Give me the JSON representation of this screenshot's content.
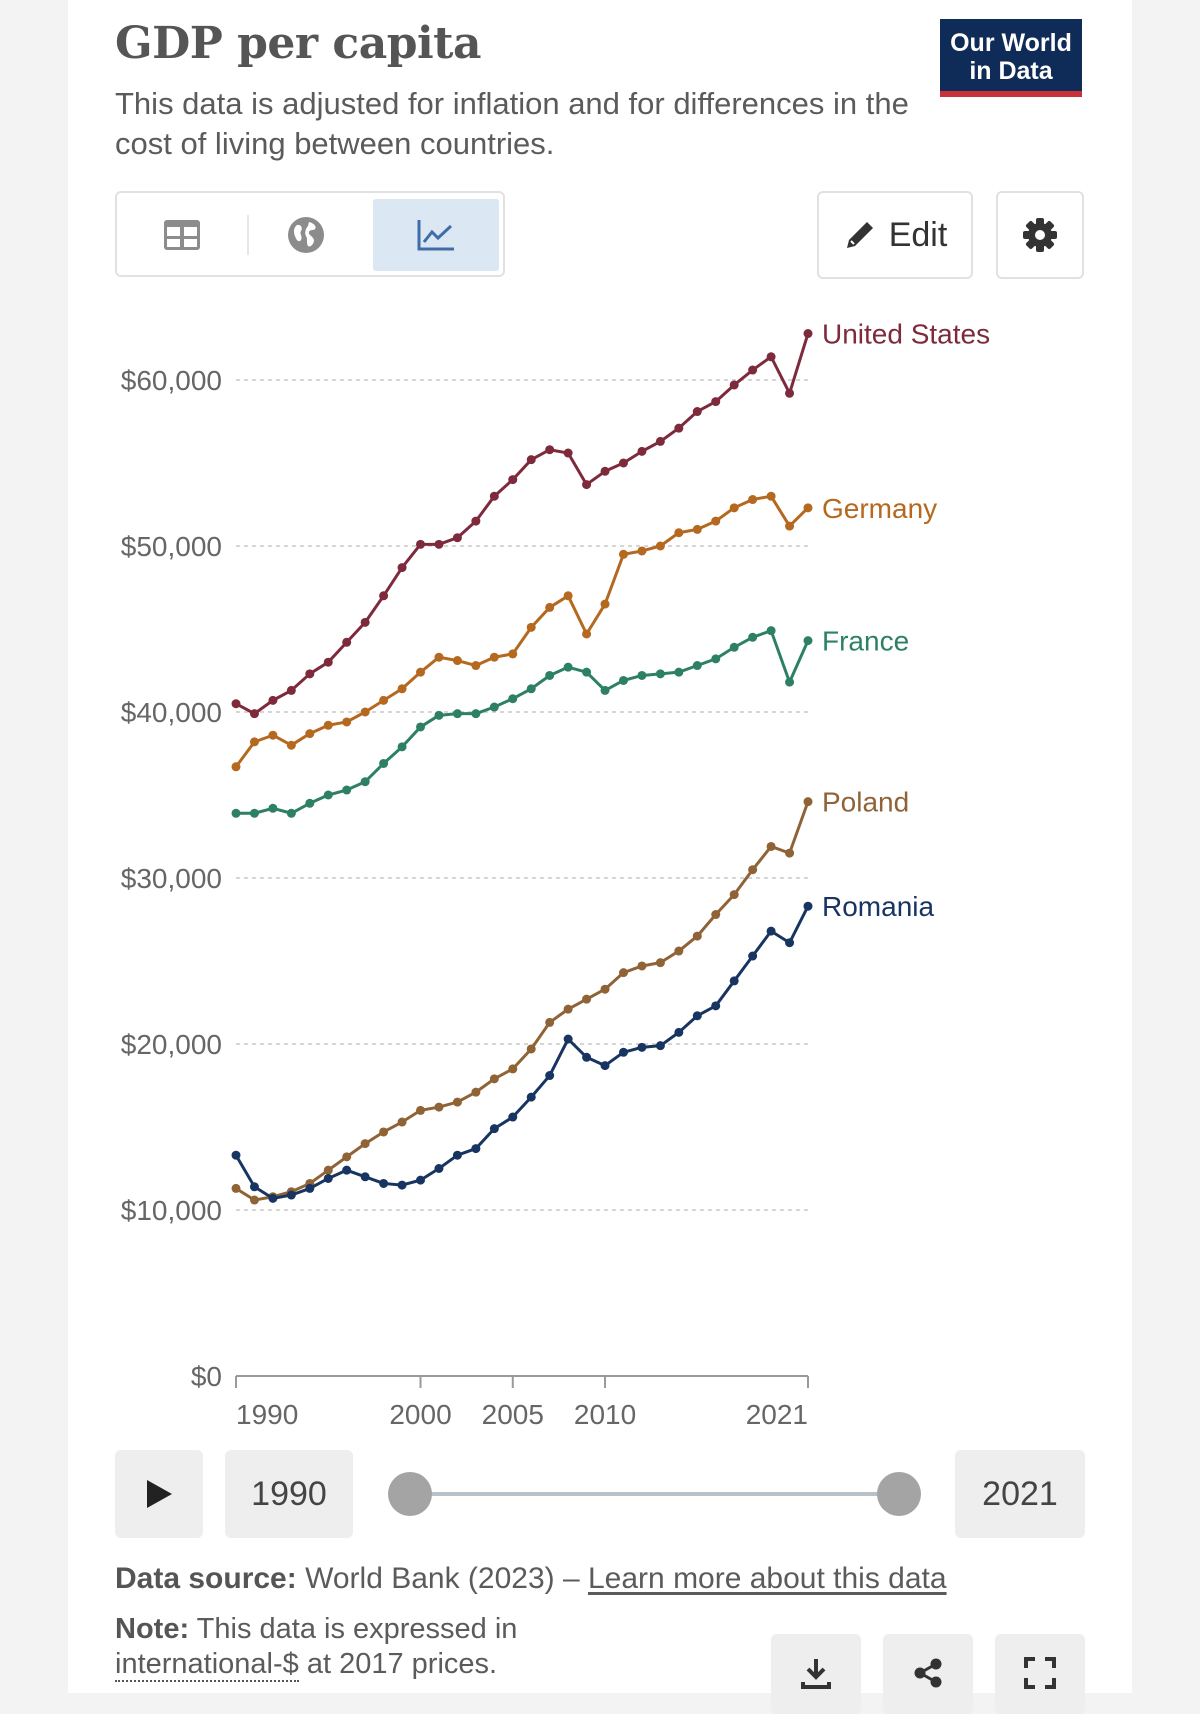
{
  "header": {
    "title": "GDP per capita",
    "subtitle": "This data is adjusted for inflation and for differences in the cost of living between countries.",
    "logo_line1": "Our World",
    "logo_line2": "in Data"
  },
  "toolbar": {
    "tabs": [
      {
        "icon": "table-icon",
        "active": false
      },
      {
        "icon": "globe-icon",
        "active": false
      },
      {
        "icon": "line-chart-icon",
        "active": true
      }
    ],
    "edit_label": "Edit",
    "settings_icon": "gear-icon"
  },
  "chart_data": {
    "type": "line",
    "title": "GDP per capita",
    "ylim": [
      0,
      60000
    ],
    "yticks": [
      "$0",
      "$10,000",
      "$20,000",
      "$30,000",
      "$40,000",
      "$50,000",
      "$60,000"
    ],
    "ytick_values": [
      0,
      10000,
      20000,
      30000,
      40000,
      50000,
      60000
    ],
    "xlim": [
      1990,
      2021
    ],
    "xticks": [
      1990,
      2000,
      2005,
      2010,
      2021
    ],
    "xtick_labels": [
      "1990",
      "2000",
      "2005",
      "2010",
      "2021"
    ],
    "grid": "horizontal dashed",
    "x": [
      1990,
      1991,
      1992,
      1993,
      1994,
      1995,
      1996,
      1997,
      1998,
      1999,
      2000,
      2001,
      2002,
      2003,
      2004,
      2005,
      2006,
      2007,
      2008,
      2009,
      2010,
      2011,
      2012,
      2013,
      2014,
      2015,
      2016,
      2017,
      2018,
      2019,
      2020,
      2021
    ],
    "series": [
      {
        "name": "United States",
        "color": "#7d2a3c",
        "values": [
          40500,
          39900,
          40700,
          41300,
          42300,
          43000,
          44200,
          45400,
          47000,
          48700,
          50100,
          50100,
          50500,
          51500,
          53000,
          54000,
          55200,
          55800,
          55600,
          53700,
          54500,
          55000,
          55700,
          56300,
          57100,
          58100,
          58700,
          59700,
          60600,
          61400,
          59200,
          62800
        ]
      },
      {
        "name": "Germany",
        "color": "#b5681f",
        "values": [
          36700,
          38200,
          38600,
          38000,
          38700,
          39200,
          39400,
          40000,
          40700,
          41400,
          42400,
          43300,
          43100,
          42800,
          43300,
          43500,
          45100,
          46300,
          47000,
          44700,
          46500,
          49500,
          49700,
          50000,
          50800,
          51000,
          51500,
          52300,
          52800,
          53000,
          51200,
          52300
        ]
      },
      {
        "name": "France",
        "color": "#2d8066",
        "values": [
          33900,
          33900,
          34200,
          33900,
          34500,
          35000,
          35300,
          35800,
          36900,
          37900,
          39100,
          39800,
          39900,
          39900,
          40300,
          40800,
          41400,
          42200,
          42700,
          42400,
          41300,
          41900,
          42200,
          42300,
          42400,
          42800,
          43200,
          43900,
          44500,
          44900,
          41800,
          44300
        ]
      },
      {
        "name": "Poland",
        "color": "#8f6336",
        "values": [
          11300,
          10600,
          10800,
          11100,
          11600,
          12400,
          13200,
          14000,
          14700,
          15300,
          16000,
          16200,
          16500,
          17100,
          17900,
          18500,
          19700,
          21300,
          22100,
          22700,
          23300,
          24300,
          24700,
          24900,
          25600,
          26500,
          27800,
          29000,
          30500,
          31900,
          31500,
          34600
        ]
      },
      {
        "name": "Romania",
        "color": "#183461",
        "values": [
          13300,
          11400,
          10700,
          10900,
          11300,
          11900,
          12400,
          12000,
          11600,
          11500,
          11800,
          12500,
          13300,
          13700,
          14900,
          15600,
          16800,
          18100,
          20300,
          19200,
          18700,
          19500,
          19800,
          19900,
          20700,
          21700,
          22300,
          23800,
          25300,
          26800,
          26100,
          28300
        ]
      }
    ],
    "legend": "line-end labels"
  },
  "timeline": {
    "play_icon": "play-icon",
    "start_year": "1990",
    "end_year": "2021"
  },
  "footer": {
    "source_label": "Data source:",
    "source_text": "World Bank (2023) – ",
    "source_link": "Learn more about this data",
    "note_label": "Note:",
    "note_text_1": "This data is expressed in",
    "note_link": "international-$",
    "note_text_2": " at 2017 prices.",
    "actions": [
      "download-icon",
      "share-icon",
      "fullscreen-icon"
    ]
  }
}
